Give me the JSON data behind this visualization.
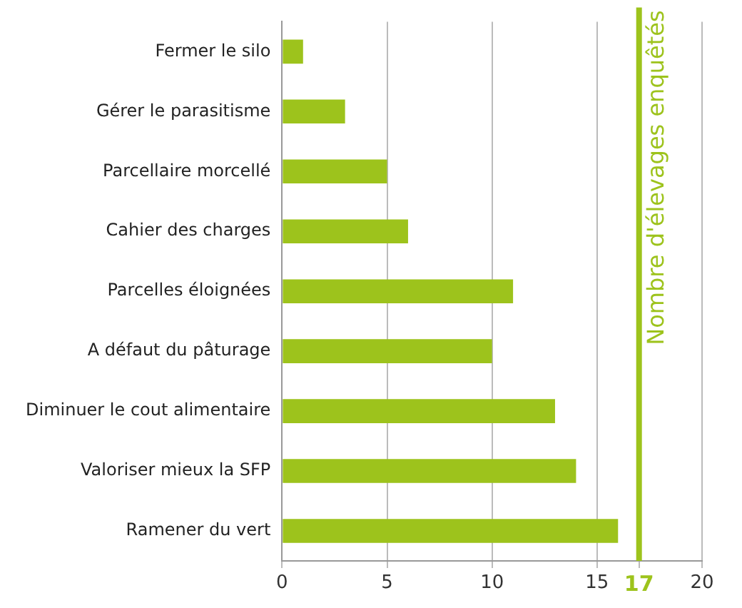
{
  "chart_data": {
    "type": "bar",
    "orientation": "horizontal",
    "categories": [
      "Fermer le silo",
      "Gérer le parasitisme",
      "Parcellaire morcellé",
      "Cahier des charges",
      "Parcelles éloignées",
      "A défaut du pâturage",
      "Diminuer le cout alimentaire",
      "Valoriser mieux la SFP",
      "Ramener du vert"
    ],
    "values": [
      1,
      3,
      5,
      6,
      11,
      10,
      13,
      14,
      16
    ],
    "color": "#9dc31c",
    "xlim": [
      0,
      20
    ],
    "xticks": [
      0,
      5,
      10,
      15,
      {
        "value": 17,
        "label": "17"
      },
      20
    ],
    "grid": "x",
    "legend": false,
    "ref_lines": [
      {
        "axis": "x",
        "value": 17,
        "label": "Nombre d'élevages enquêtés",
        "color": "#9dc31c"
      }
    ]
  }
}
